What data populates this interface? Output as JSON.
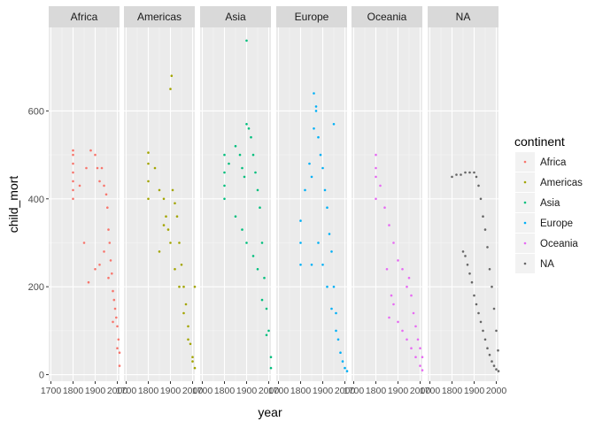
{
  "chart_data": {
    "type": "scatter",
    "title": "",
    "xlabel": "year",
    "ylabel": "child_mort",
    "xlim": [
      1690,
      2010
    ],
    "ylim": [
      -15,
      790
    ],
    "x_ticks": [
      1700,
      1800,
      1900,
      2000
    ],
    "x_tick_labels": [
      "1700",
      "1800",
      "1900",
      "2000"
    ],
    "y_ticks": [
      0,
      200,
      400,
      600
    ],
    "y_tick_labels": [
      "0",
      "200",
      "400",
      "600"
    ],
    "grid": true,
    "facet_by": "continent",
    "legend": {
      "title": "continent",
      "position": "right",
      "entries": [
        "Africa",
        "Americas",
        "Asia",
        "Europe",
        "Oceania",
        "NA"
      ]
    },
    "series": [
      {
        "name": "Africa",
        "color": "#F8766D",
        "points": [
          [
            1800,
            400
          ],
          [
            1800,
            420
          ],
          [
            1800,
            440
          ],
          [
            1800,
            460
          ],
          [
            1800,
            480
          ],
          [
            1800,
            500
          ],
          [
            1800,
            510
          ],
          [
            1830,
            430
          ],
          [
            1860,
            470
          ],
          [
            1880,
            510
          ],
          [
            1900,
            500
          ],
          [
            1910,
            470
          ],
          [
            1920,
            440
          ],
          [
            1930,
            470
          ],
          [
            1940,
            430
          ],
          [
            1950,
            410
          ],
          [
            1955,
            380
          ],
          [
            1960,
            330
          ],
          [
            1965,
            300
          ],
          [
            1970,
            260
          ],
          [
            1975,
            230
          ],
          [
            1980,
            190
          ],
          [
            1985,
            170
          ],
          [
            1990,
            150
          ],
          [
            1995,
            130
          ],
          [
            2000,
            110
          ],
          [
            2005,
            80
          ],
          [
            2010,
            50
          ],
          [
            1850,
            300
          ],
          [
            1870,
            210
          ],
          [
            1900,
            240
          ],
          [
            1920,
            250
          ],
          [
            1940,
            280
          ],
          [
            1960,
            220
          ],
          [
            1980,
            120
          ],
          [
            2000,
            60
          ],
          [
            2010,
            20
          ]
        ]
      },
      {
        "name": "Americas",
        "color": "#A3A500",
        "points": [
          [
            1800,
            400
          ],
          [
            1800,
            440
          ],
          [
            1800,
            480
          ],
          [
            1800,
            505
          ],
          [
            1830,
            470
          ],
          [
            1850,
            420
          ],
          [
            1870,
            400
          ],
          [
            1880,
            360
          ],
          [
            1890,
            330
          ],
          [
            1900,
            650
          ],
          [
            1905,
            680
          ],
          [
            1910,
            420
          ],
          [
            1920,
            390
          ],
          [
            1930,
            360
          ],
          [
            1940,
            300
          ],
          [
            1950,
            250
          ],
          [
            1960,
            200
          ],
          [
            1970,
            160
          ],
          [
            1980,
            110
          ],
          [
            1990,
            70
          ],
          [
            2000,
            40
          ],
          [
            2010,
            15
          ],
          [
            1850,
            280
          ],
          [
            1870,
            340
          ],
          [
            1900,
            300
          ],
          [
            1920,
            240
          ],
          [
            1940,
            200
          ],
          [
            1960,
            140
          ],
          [
            1980,
            80
          ],
          [
            2000,
            30
          ],
          [
            2010,
            200
          ]
        ]
      },
      {
        "name": "Asia",
        "color": "#00BF7D",
        "points": [
          [
            1800,
            400
          ],
          [
            1800,
            430
          ],
          [
            1800,
            460
          ],
          [
            1800,
            500
          ],
          [
            1820,
            480
          ],
          [
            1850,
            520
          ],
          [
            1870,
            500
          ],
          [
            1880,
            470
          ],
          [
            1890,
            450
          ],
          [
            1900,
            570
          ],
          [
            1910,
            560
          ],
          [
            1920,
            540
          ],
          [
            1930,
            500
          ],
          [
            1940,
            460
          ],
          [
            1950,
            420
          ],
          [
            1960,
            380
          ],
          [
            1970,
            300
          ],
          [
            1980,
            220
          ],
          [
            1990,
            150
          ],
          [
            2000,
            100
          ],
          [
            2010,
            40
          ],
          [
            1850,
            360
          ],
          [
            1880,
            330
          ],
          [
            1900,
            300
          ],
          [
            1930,
            270
          ],
          [
            1950,
            240
          ],
          [
            1970,
            170
          ],
          [
            1990,
            90
          ],
          [
            2010,
            15
          ],
          [
            1900,
            760
          ]
        ]
      },
      {
        "name": "Europe",
        "color": "#00B0F6",
        "points": [
          [
            1800,
            350
          ],
          [
            1800,
            300
          ],
          [
            1800,
            250
          ],
          [
            1820,
            420
          ],
          [
            1840,
            480
          ],
          [
            1850,
            450
          ],
          [
            1860,
            560
          ],
          [
            1870,
            600
          ],
          [
            1880,
            540
          ],
          [
            1890,
            500
          ],
          [
            1900,
            470
          ],
          [
            1910,
            420
          ],
          [
            1920,
            380
          ],
          [
            1930,
            320
          ],
          [
            1940,
            280
          ],
          [
            1950,
            200
          ],
          [
            1960,
            140
          ],
          [
            1970,
            80
          ],
          [
            1980,
            50
          ],
          [
            1990,
            30
          ],
          [
            2000,
            15
          ],
          [
            2010,
            8
          ],
          [
            1850,
            250
          ],
          [
            1880,
            300
          ],
          [
            1900,
            250
          ],
          [
            1920,
            200
          ],
          [
            1940,
            150
          ],
          [
            1960,
            100
          ],
          [
            1860,
            640
          ],
          [
            1950,
            570
          ],
          [
            1870,
            610
          ]
        ]
      },
      {
        "name": "Oceania",
        "color": "#E76BF3",
        "points": [
          [
            1800,
            400
          ],
          [
            1800,
            450
          ],
          [
            1800,
            470
          ],
          [
            1800,
            500
          ],
          [
            1820,
            430
          ],
          [
            1840,
            380
          ],
          [
            1860,
            340
          ],
          [
            1880,
            300
          ],
          [
            1900,
            260
          ],
          [
            1920,
            240
          ],
          [
            1940,
            200
          ],
          [
            1950,
            220
          ],
          [
            1960,
            180
          ],
          [
            1970,
            140
          ],
          [
            1980,
            110
          ],
          [
            1990,
            80
          ],
          [
            2000,
            60
          ],
          [
            2010,
            40
          ],
          [
            1850,
            240
          ],
          [
            1870,
            180
          ],
          [
            1880,
            160
          ],
          [
            1900,
            120
          ],
          [
            1920,
            100
          ],
          [
            1940,
            80
          ],
          [
            1960,
            60
          ],
          [
            1980,
            40
          ],
          [
            2000,
            20
          ],
          [
            2010,
            10
          ],
          [
            1860,
            130
          ]
        ]
      },
      {
        "name": "NA",
        "color": "#666666",
        "points": [
          [
            1800,
            450
          ],
          [
            1820,
            455
          ],
          [
            1840,
            455
          ],
          [
            1860,
            460
          ],
          [
            1880,
            460
          ],
          [
            1900,
            460
          ],
          [
            1910,
            450
          ],
          [
            1920,
            430
          ],
          [
            1930,
            400
          ],
          [
            1940,
            360
          ],
          [
            1950,
            330
          ],
          [
            1960,
            290
          ],
          [
            1970,
            240
          ],
          [
            1980,
            200
          ],
          [
            1990,
            150
          ],
          [
            2000,
            100
          ],
          [
            2008,
            55
          ],
          [
            1850,
            280
          ],
          [
            1860,
            270
          ],
          [
            1870,
            250
          ],
          [
            1880,
            230
          ],
          [
            1890,
            210
          ],
          [
            1900,
            180
          ],
          [
            1910,
            160
          ],
          [
            1920,
            140
          ],
          [
            1930,
            120
          ],
          [
            1940,
            100
          ],
          [
            1950,
            80
          ],
          [
            1960,
            60
          ],
          [
            1970,
            45
          ],
          [
            1980,
            30
          ],
          [
            1990,
            20
          ],
          [
            2000,
            12
          ],
          [
            2010,
            8
          ]
        ]
      }
    ]
  }
}
